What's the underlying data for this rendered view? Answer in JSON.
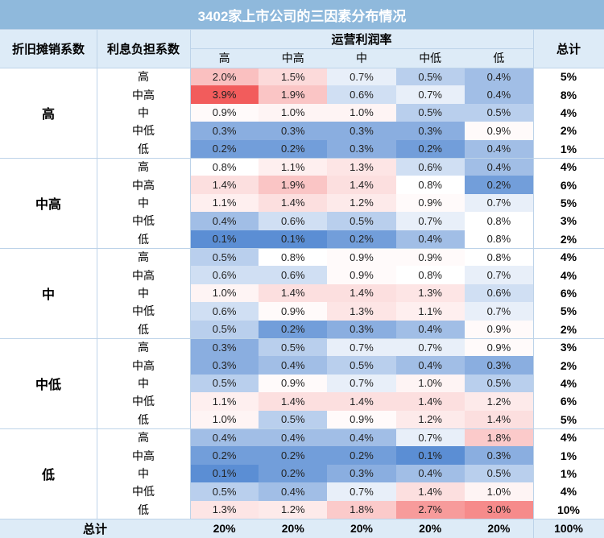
{
  "table": {
    "title": "3402家上市公司的三因素分布情况",
    "header_depreciation": "折旧摊销系数",
    "header_interest": "利息负担系数",
    "header_margin": "运营利润率",
    "header_total": "总计",
    "row_total_label": "总计",
    "margin_levels": [
      "高",
      "中高",
      "中",
      "中低",
      "低"
    ]
  },
  "chart_data": {
    "type": "heatmap",
    "title": "3402家上市公司的三因素分布情况",
    "row_groups": [
      "高",
      "中高",
      "中",
      "中低",
      "低"
    ],
    "sub_rows": [
      "高",
      "中高",
      "中",
      "中低",
      "低"
    ],
    "columns": [
      "高",
      "中高",
      "中",
      "中低",
      "低"
    ],
    "values": [
      [
        [
          2.0,
          1.5,
          0.7,
          0.5,
          0.4
        ],
        [
          3.9,
          1.9,
          0.6,
          0.7,
          0.4
        ],
        [
          0.9,
          1.0,
          1.0,
          0.5,
          0.5
        ],
        [
          0.3,
          0.3,
          0.3,
          0.3,
          0.9
        ],
        [
          0.2,
          0.2,
          0.3,
          0.2,
          0.4
        ]
      ],
      [
        [
          0.8,
          1.1,
          1.3,
          0.6,
          0.4
        ],
        [
          1.4,
          1.9,
          1.4,
          0.8,
          0.2
        ],
        [
          1.1,
          1.4,
          1.2,
          0.9,
          0.7
        ],
        [
          0.4,
          0.6,
          0.5,
          0.7,
          0.8
        ],
        [
          0.1,
          0.1,
          0.2,
          0.4,
          0.8
        ]
      ],
      [
        [
          0.5,
          0.8,
          0.9,
          0.9,
          0.8
        ],
        [
          0.6,
          0.6,
          0.9,
          0.8,
          0.7
        ],
        [
          1.0,
          1.4,
          1.4,
          1.3,
          0.6
        ],
        [
          0.6,
          0.9,
          1.3,
          1.1,
          0.7
        ],
        [
          0.5,
          0.2,
          0.3,
          0.4,
          0.9
        ]
      ],
      [
        [
          0.3,
          0.5,
          0.7,
          0.7,
          0.9
        ],
        [
          0.3,
          0.4,
          0.5,
          0.4,
          0.3
        ],
        [
          0.5,
          0.9,
          0.7,
          1.0,
          0.5
        ],
        [
          1.1,
          1.4,
          1.4,
          1.4,
          1.2
        ],
        [
          1.0,
          0.5,
          0.9,
          1.2,
          1.4
        ]
      ],
      [
        [
          0.4,
          0.4,
          0.4,
          0.7,
          1.8
        ],
        [
          0.2,
          0.2,
          0.2,
          0.1,
          0.3
        ],
        [
          0.1,
          0.2,
          0.3,
          0.4,
          0.5
        ],
        [
          0.5,
          0.4,
          0.7,
          1.4,
          1.0
        ],
        [
          1.3,
          1.2,
          1.8,
          2.7,
          3.0
        ]
      ]
    ],
    "value_format": "%.1f%",
    "row_totals": [
      [
        "5%",
        "8%",
        "4%",
        "2%",
        "1%"
      ],
      [
        "4%",
        "6%",
        "5%",
        "3%",
        "2%"
      ],
      [
        "4%",
        "4%",
        "6%",
        "5%",
        "2%"
      ],
      [
        "3%",
        "2%",
        "4%",
        "6%",
        "5%"
      ],
      [
        "4%",
        "1%",
        "1%",
        "4%",
        "10%"
      ]
    ],
    "column_totals": [
      "20%",
      "20%",
      "20%",
      "20%",
      "20%"
    ],
    "grand_total": "100%",
    "color_scale": {
      "low": "#5b8ed4",
      "mid": "#ffffff",
      "high": "#f25c5c",
      "mid_value": 0.8
    }
  }
}
